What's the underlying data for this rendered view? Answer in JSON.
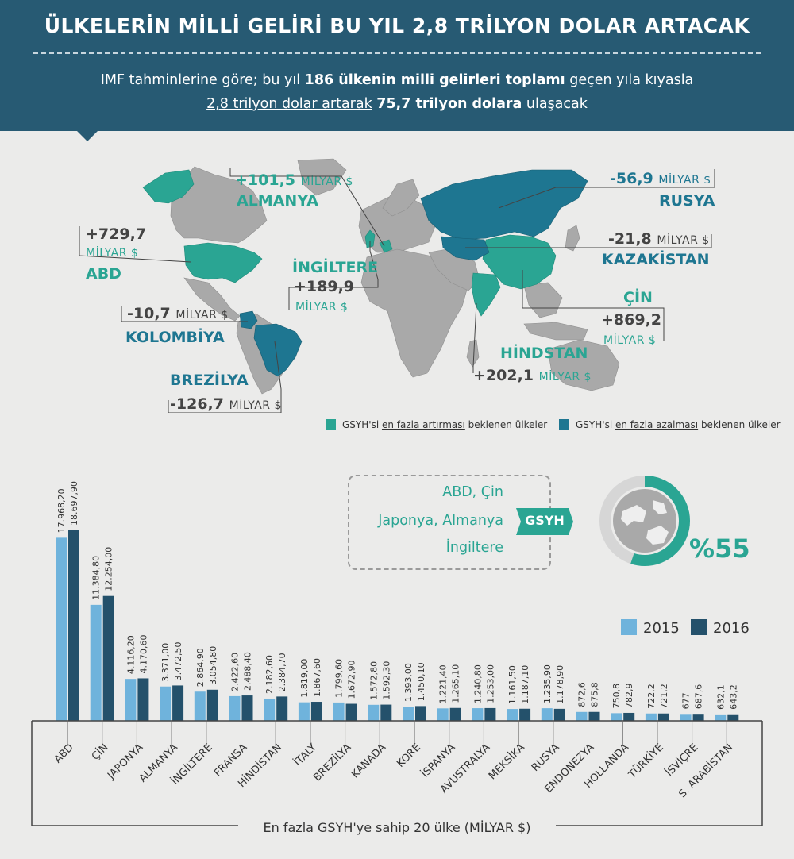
{
  "header": {
    "title": "ÜLKELERİN MİLLİ GELİRİ BU YIL 2,8 TRİLYON DOLAR ARTACAK",
    "subtitle_line1": [
      "IMF tahminlerine göre; bu yıl ",
      "186 ülkenin milli gelirleri toplamı",
      " geçen yıla kıyasla"
    ],
    "subtitle_line2": [
      "2,8 trilyon dolar artarak",
      " ",
      "75,7 trilyon dolara",
      " ulaşacak"
    ]
  },
  "colors": {
    "increase": "#2aa593",
    "decrease": "#1e7691",
    "bar2015": "#6fb3dc",
    "bar2016": "#24516b",
    "land": "#a9a9a9"
  },
  "map_labels": {
    "almanya": {
      "value": "+101,5",
      "unit": "MİLYAR $",
      "name": "ALMANYA"
    },
    "rusya": {
      "value": "-56,9",
      "unit": "MİLYAR $",
      "name": "RUSYA"
    },
    "abd": {
      "value": "+729,7",
      "unit": "MİLYAR $",
      "name": "ABD"
    },
    "kazakistan": {
      "value": "-21,8",
      "unit": "MİLYAR $",
      "name": "KAZAKİSTAN"
    },
    "ingiltere": {
      "name": "İNGİLTERE",
      "value": "+189,9",
      "unit": "MİLYAR $"
    },
    "kolombiya": {
      "value": "-10,7",
      "unit": "MİLYAR $",
      "name": "KOLOMBİYA"
    },
    "cin": {
      "name": "ÇİN",
      "value": "+869,2",
      "unit": "MİLYAR $"
    },
    "hindistan": {
      "name": "HİNDSTAN",
      "value": "+202,1",
      "unit": "MİLYAR $"
    },
    "brezilya": {
      "name": "BREZİLYA",
      "value": "-126,7",
      "unit": "MİLYAR $"
    }
  },
  "map_legend": {
    "increase": [
      "GSYH'si ",
      "en fazla artırması",
      " beklenen ülkeler"
    ],
    "decrease": [
      "GSYH'si ",
      "en fazla azalması",
      " beklenen ülkeler"
    ]
  },
  "gsyh_callout": {
    "lines": [
      "ABD, Çin",
      "Japonya, Almanya",
      "İngiltere"
    ],
    "tag": "GSYH",
    "share": "%55",
    "share_value": 55
  },
  "chart_data": {
    "type": "bar",
    "title": "En fazla GSYH'ye sahip 20 ülke (MİLYAR $)",
    "categories": [
      "ABD",
      "ÇİN",
      "JAPONYA",
      "ALMANYA",
      "İNGİLTERE",
      "FRANSA",
      "HİNDİSTAN",
      "İTALY",
      "BREZİLYA",
      "KANADA",
      "KORE",
      "İSPANYA",
      "AVUSTRALYA",
      "MEKSİKA",
      "RUSYA",
      "ENDONEZYA",
      "HOLLANDA",
      "TÜRKİYE",
      "İSVİÇRE",
      "S. ARABİSTAN"
    ],
    "series": [
      {
        "name": "2015",
        "values": [
          17968.2,
          11384.8,
          4116.2,
          3371.0,
          2864.9,
          2422.6,
          2182.6,
          1819.0,
          1799.6,
          1572.8,
          1393.0,
          1221.4,
          1240.8,
          1161.5,
          1235.9,
          872.6,
          750.8,
          722.2,
          677,
          632.1
        ],
        "labels": [
          "17.968,20",
          "11.384,80",
          "4.116,20",
          "3.371,00",
          "2.864,90",
          "2.422,60",
          "2.182,60",
          "1.819,00",
          "1.799,60",
          "1.572,80",
          "1.393,00",
          "1.221,40",
          "1.240,80",
          "1.161,50",
          "1.235,90",
          "872,6",
          "750,8",
          "722,2",
          "677",
          "632,1"
        ]
      },
      {
        "name": "2016",
        "values": [
          18697.9,
          12254.0,
          4170.6,
          3472.5,
          3054.8,
          2488.4,
          2384.7,
          1867.6,
          1672.9,
          1592.3,
          1450.1,
          1265.1,
          1253.0,
          1187.1,
          1178.9,
          875.8,
          782.9,
          721.2,
          687.6,
          643.2
        ],
        "labels": [
          "18.697,90",
          "12.254,00",
          "4.170,60",
          "3.472,50",
          "3.054,80",
          "2.488,40",
          "2.384,70",
          "1.867,60",
          "1.672,90",
          "1.592,30",
          "1.450,10",
          "1.265,10",
          "1.253,00",
          "1.187,10",
          "1.178,90",
          "875,8",
          "782,9",
          "721,2",
          "687,6",
          "643,2"
        ]
      }
    ],
    "ylim": [
      0,
      18697.9
    ],
    "legend": "right"
  }
}
